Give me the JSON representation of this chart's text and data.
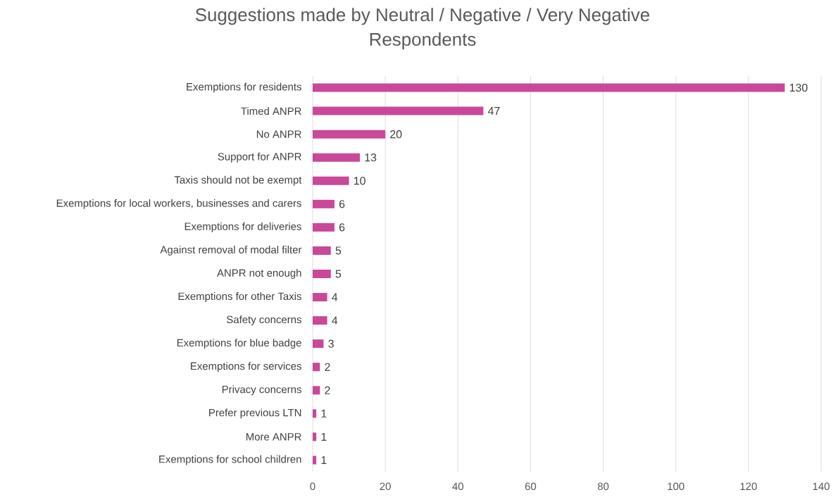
{
  "chart_data": {
    "type": "bar",
    "orientation": "horizontal",
    "title": "Suggestions made by Neutral / Negative / Very Negative Respondents",
    "categories": [
      "Exemptions for residents",
      "Timed ANPR",
      "No ANPR",
      "Support for ANPR",
      "Taxis should not be exempt",
      "Exemptions for local workers, businesses and carers",
      "Exemptions for deliveries",
      "Against removal of modal filter",
      "ANPR not enough",
      "Exemptions for other Taxis",
      "Safety concerns",
      "Exemptions for blue badge",
      "Exemptions for services",
      "Privacy concerns",
      "Prefer previous LTN",
      "More ANPR",
      "Exemptions for school children"
    ],
    "values": [
      130,
      47,
      20,
      13,
      10,
      6,
      6,
      5,
      5,
      4,
      4,
      3,
      2,
      2,
      1,
      1,
      1
    ],
    "color": "#c9489a",
    "xlim": [
      0,
      140
    ],
    "xticks": [
      0,
      20,
      40,
      60,
      80,
      100,
      120,
      140
    ],
    "grid": "x",
    "data_labels": true
  }
}
